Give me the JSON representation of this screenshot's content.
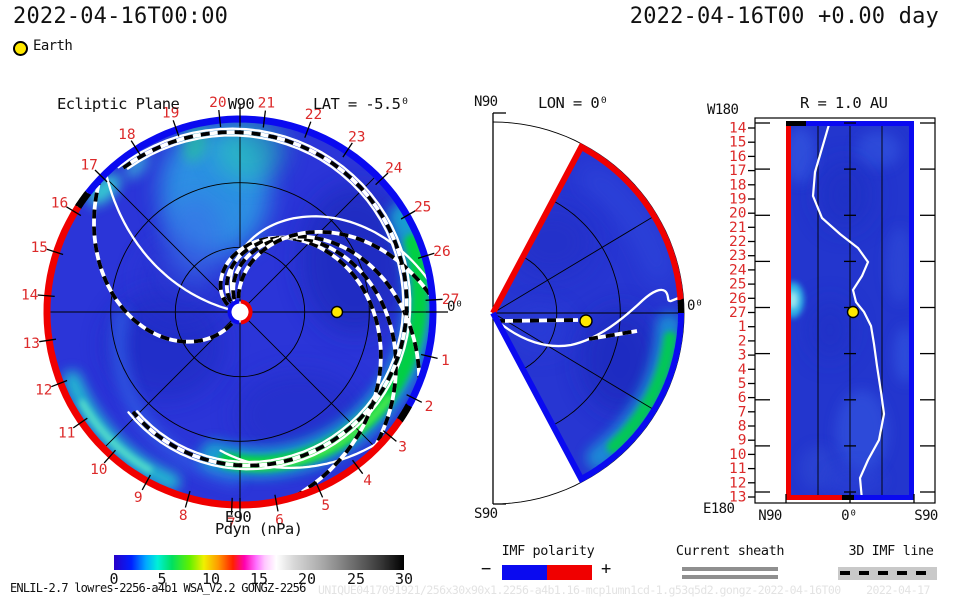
{
  "header": {
    "left_timestamp": "2022-04-16T00:00",
    "right_timestamp": "2022-04-16T00 +0.00 day",
    "earth_label": "Earth"
  },
  "left_panel": {
    "title": "Ecliptic Plane",
    "w_label": "W90",
    "lat_label": "LAT = -5.5⁰",
    "e_label": "E90",
    "zero_label": "0⁰",
    "day_labels": [
      "1",
      "2",
      "3",
      "4",
      "5",
      "6",
      "7",
      "8",
      "9",
      "10",
      "11",
      "12",
      "13",
      "14",
      "15",
      "16",
      "17",
      "18",
      "19",
      "20",
      "21",
      "22",
      "23",
      "24",
      "25",
      "26",
      "27"
    ],
    "colorbar": {
      "label": "Pdyn (nPa)",
      "ticks": [
        "0",
        "5",
        "10",
        "15",
        "20",
        "25",
        "30"
      ]
    }
  },
  "middle_panel": {
    "n_label": "N90",
    "title": "LON = 0⁰",
    "s_label": "S90",
    "zero_label": "0⁰"
  },
  "right_panel": {
    "w_label": "W180",
    "title": "R = 1.0 AU",
    "e_label": "E180",
    "x_labels": [
      "N90",
      "0⁰",
      "S90"
    ],
    "row_labels": [
      "14",
      "15",
      "16",
      "17",
      "18",
      "19",
      "20",
      "21",
      "22",
      "23",
      "24",
      "25",
      "26",
      "27",
      "1",
      "2",
      "3",
      "4",
      "5",
      "6",
      "7",
      "8",
      "9",
      "10",
      "11",
      "12",
      "13"
    ]
  },
  "legends": {
    "imf_polarity": {
      "title": "IMF polarity",
      "minus": "−",
      "plus": "+"
    },
    "current_sheath": {
      "title": "Current sheath"
    },
    "imf_line": {
      "title": "3D IMF line"
    }
  },
  "footer": {
    "model_info": "ENLIL-2.7 lowres-2256-a4b1 WSA_V2.2 GONGZ-2256",
    "watermark": "UNIQUE0417091921/256x30x90x1.2256-a4b1.16-mcp1umn1cd-1.g53q5d2.gongz-2022-04-16T00    2022-04-17"
  },
  "colors": {
    "imf_negative_blue": "#0a0af0",
    "imf_positive_red": "#f00000",
    "tick_label_red": "#dc2a2a",
    "earth_yellow": "#ffe800",
    "disk_base_blue": "#2b35d8",
    "current_sheet_white": "#ffffff",
    "legend_gray": "#8f8f8f",
    "colorbar_stops": [
      "#2800c8",
      "#0020ff",
      "#00a8ff",
      "#00f0d8",
      "#00e060",
      "#60f000",
      "#f0f000",
      "#ff9800",
      "#ff2000",
      "#ff00b0",
      "#ff70ff",
      "#ffffff",
      "#a8a8a8",
      "#000000"
    ]
  },
  "chart_data": [
    {
      "type": "heatmap",
      "title": "Ecliptic Plane",
      "projection": "polar disk (solar equatorial slice, Sun at center)",
      "quantity": "Pdyn (nPa)",
      "color_scale_range": [
        0,
        30
      ],
      "color_scale_ticks": [
        0,
        5,
        10,
        15,
        20,
        25,
        30
      ],
      "angular_tick_labels_day_of_month": [
        1,
        2,
        3,
        4,
        5,
        6,
        7,
        8,
        9,
        10,
        11,
        12,
        13,
        14,
        15,
        16,
        17,
        18,
        19,
        20,
        21,
        22,
        23,
        24,
        25,
        26,
        27
      ],
      "axis_annotations": [
        "W90",
        "E90",
        "0⁰"
      ],
      "subtitle": "LAT = -5.5⁰",
      "overlays": [
        "Earth marker at 0⁰ longitude",
        "IMF polarity boundary rim (blue=-, red=+)",
        "current sheet (white spiral lines)",
        "3D IMF lines (black/white dashed spirals)"
      ]
    },
    {
      "type": "heatmap",
      "title": "LON = 0⁰",
      "projection": "meridional wedge (Sun at apex)",
      "axis_annotations": [
        "N90",
        "S90",
        "0⁰"
      ],
      "overlays": [
        "Earth marker slightly below equator (LAT -5.5)",
        "current sheet (white line)",
        "3D IMF line (dashed)",
        "polarity edges (red top, blue bottom)"
      ]
    },
    {
      "type": "heatmap",
      "title": "R = 1.0 AU",
      "projection": "latitude-longitude map at 1 AU",
      "x_tick_labels": [
        "N90",
        "0⁰",
        "S90"
      ],
      "y_tick_labels_day_of_month": [
        14,
        15,
        16,
        17,
        18,
        19,
        20,
        21,
        22,
        23,
        24,
        25,
        26,
        27,
        1,
        2,
        3,
        4,
        5,
        6,
        7,
        8,
        9,
        10,
        11,
        12,
        13
      ],
      "corner_annotations": [
        "W180",
        "E180"
      ],
      "overlays": [
        "Earth marker at center",
        "current sheet (white meandering line)",
        "polarity border (red left/lower-left, blue right)"
      ]
    }
  ]
}
